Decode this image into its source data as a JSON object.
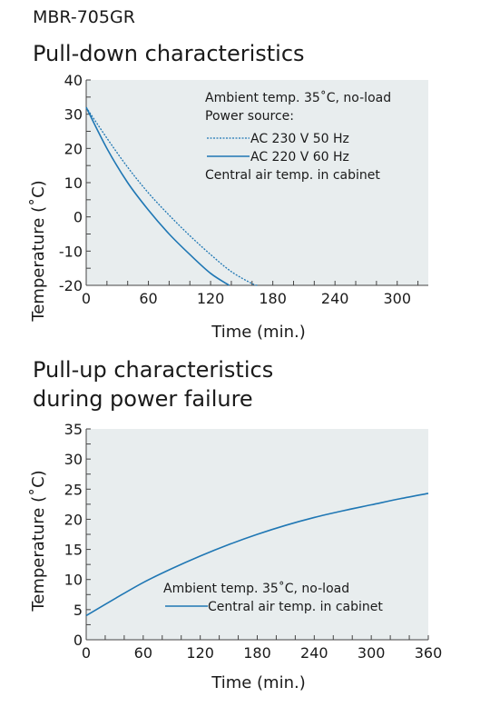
{
  "model": "MBR-705GR",
  "chart_data": [
    {
      "type": "line",
      "title": "Pull-down characteristics",
      "xlabel": "Time (min.)",
      "ylabel": "Temperature (˚C)",
      "xlim": [
        0,
        330
      ],
      "ylim": [
        -20,
        40
      ],
      "xticks": [
        0,
        60,
        120,
        180,
        240,
        300
      ],
      "yticks": [
        -20,
        -10,
        0,
        10,
        20,
        30,
        40
      ],
      "annotations": [
        "Ambient temp. 35˚C, no-load",
        "Power source:",
        "Central air temp. in cabinet"
      ],
      "series": [
        {
          "name": "AC 230 V 50 Hz",
          "style": "dotted",
          "color": "#1f77b4",
          "x": [
            0,
            20,
            40,
            60,
            80,
            100,
            120,
            140,
            160,
            165
          ],
          "y": [
            32,
            23,
            14.5,
            7,
            0.5,
            -5.5,
            -11,
            -16,
            -19.5,
            -20
          ]
        },
        {
          "name": "AC 220 V 60 Hz",
          "style": "solid",
          "color": "#1f77b4",
          "x": [
            0,
            20,
            40,
            60,
            80,
            100,
            120,
            138
          ],
          "y": [
            32,
            20,
            10,
            2,
            -5,
            -11,
            -16.5,
            -20
          ]
        }
      ],
      "grid": false,
      "background": "#e8edee"
    },
    {
      "type": "line",
      "title_lines": [
        "Pull-up characteristics",
        "during power failure"
      ],
      "xlabel": "Time (min.)",
      "ylabel": "Temperature (˚C)",
      "xlim": [
        0,
        360
      ],
      "ylim": [
        0,
        35
      ],
      "xticks": [
        0,
        60,
        120,
        180,
        240,
        300,
        360
      ],
      "yticks": [
        0,
        5,
        10,
        15,
        20,
        25,
        30,
        35
      ],
      "annotations": [
        "Ambient temp. 35˚C, no-load"
      ],
      "series": [
        {
          "name": "Central air temp. in cabinet",
          "style": "solid",
          "color": "#1f77b4",
          "x": [
            0,
            30,
            60,
            90,
            120,
            150,
            180,
            210,
            240,
            270,
            300,
            330,
            360
          ],
          "y": [
            4,
            6.8,
            9.5,
            11.8,
            13.9,
            15.8,
            17.5,
            19,
            20.3,
            21.4,
            22.4,
            23.4,
            24.3
          ]
        }
      ],
      "grid": false,
      "background": "#e8edee"
    }
  ]
}
